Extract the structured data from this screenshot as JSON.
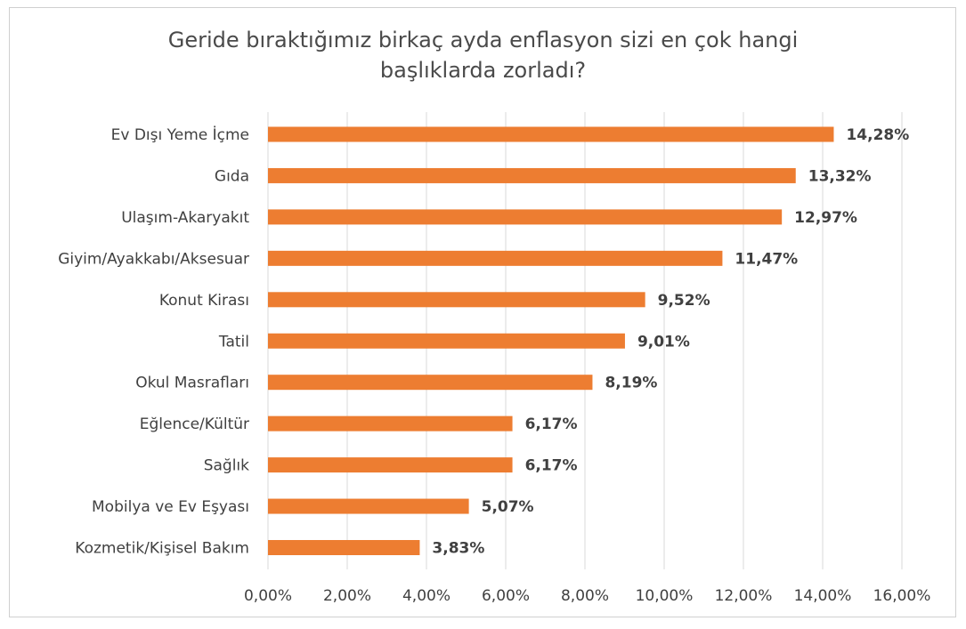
{
  "chart_data": {
    "type": "bar",
    "orientation": "horizontal",
    "title_lines": [
      "Geride bıraktığımız birkaç ayda enflasyon sizi en çok hangi",
      "başlıklarda zorladı?"
    ],
    "categories": [
      "Ev Dışı Yeme İçme",
      "Gıda",
      "Ulaşım-Akaryakıt",
      "Giyim/Ayakkabı/Aksesuar",
      "Konut Kirası",
      "Tatil",
      "Okul Masrafları",
      "Eğlence/Kültür",
      "Sağlık",
      "Mobilya ve Ev Eşyası",
      "Kozmetik/Kişisel Bakım"
    ],
    "values": [
      14.28,
      13.32,
      12.97,
      11.47,
      9.52,
      9.01,
      8.19,
      6.17,
      6.17,
      5.07,
      3.83
    ],
    "value_labels": [
      "14,28%",
      "13,32%",
      "12,97%",
      "11,47%",
      "9,52%",
      "9,01%",
      "8,19%",
      "6,17%",
      "6,17%",
      "5,07%",
      "3,83%"
    ],
    "x_ticks": [
      0,
      2,
      4,
      6,
      8,
      10,
      12,
      14,
      16
    ],
    "x_tick_labels": [
      "0,00%",
      "2,00%",
      "4,00%",
      "6,00%",
      "8,00%",
      "10,00%",
      "12,00%",
      "14,00%",
      "16,00%"
    ],
    "xlim": [
      0,
      16
    ],
    "grid": true,
    "bar_color": "#ED7D31",
    "grid_color": "#d9d9d9",
    "text_color": "#404040",
    "xlabel": "",
    "ylabel": ""
  }
}
